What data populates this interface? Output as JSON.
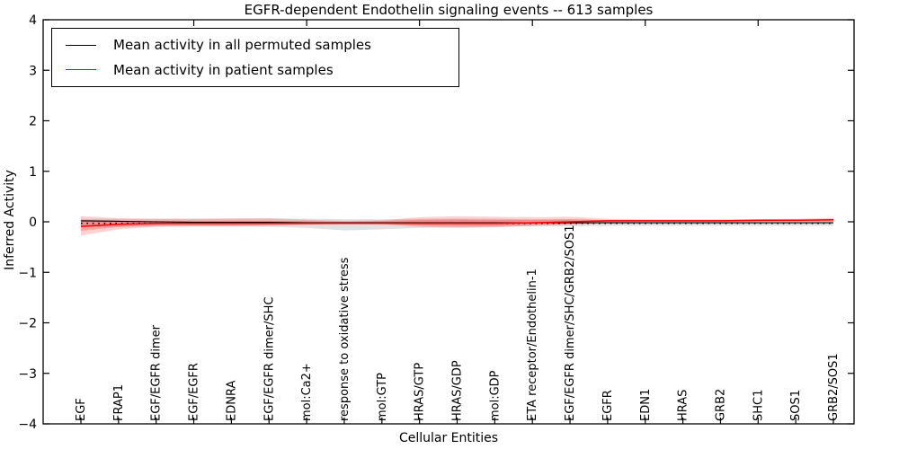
{
  "chart_data": {
    "type": "line",
    "title": "EGFR-dependent Endothelin signaling events -- 613 samples",
    "xlabel": "Cellular Entities",
    "ylabel": "Inferred Activity",
    "ylim": [
      -4,
      4
    ],
    "yticks": [
      4,
      3,
      2,
      1,
      0,
      -1,
      -2,
      -3,
      -4
    ],
    "grid": false,
    "legend_position": "upper left",
    "categories": [
      "EGF",
      "FRAP1",
      "EGF/EGFR dimer",
      "EGF/EGFR",
      "EDNRA",
      "EGF/EGFR dimer/SHC",
      "mol:Ca2+",
      "response to oxidative stress",
      "mol:GTP",
      "HRAS/GTP",
      "HRAS/GDP",
      "mol:GDP",
      "ETA receptor/Endothelin-1",
      "EGF/EGFR dimer/SHC/GRB2/SOS1",
      "EGFR",
      "EDN1",
      "HRAS",
      "GRB2",
      "SHC1",
      "SOS1",
      "GRB2/SOS1"
    ],
    "series": [
      {
        "name": "Mean activity in all permuted samples",
        "color": "#000000",
        "line_style": "solid",
        "values": [
          0.02,
          0.01,
          0.0,
          -0.01,
          -0.01,
          -0.01,
          -0.02,
          -0.02,
          -0.02,
          -0.02,
          -0.02,
          -0.02,
          -0.02,
          -0.02,
          -0.02,
          -0.02,
          -0.02,
          -0.02,
          -0.02,
          -0.02,
          -0.02
        ],
        "band": {
          "fill": "#bdbdbd",
          "opacity": 0.45,
          "upper": [
            0.06,
            0.06,
            0.06,
            0.06,
            0.06,
            0.07,
            0.06,
            0.05,
            0.05,
            0.06,
            0.06,
            0.06,
            0.05,
            0.05,
            0.04,
            0.04,
            0.04,
            0.04,
            0.04,
            0.04,
            0.05
          ],
          "lower": [
            -0.1,
            -0.1,
            -0.09,
            -0.09,
            -0.09,
            -0.1,
            -0.12,
            -0.17,
            -0.15,
            -0.12,
            -0.11,
            -0.1,
            -0.09,
            -0.09,
            -0.08,
            -0.08,
            -0.08,
            -0.08,
            -0.08,
            -0.08,
            -0.08
          ]
        }
      },
      {
        "name": "Mean activity in patient samples",
        "color": "#ff0000",
        "line_style": "solid",
        "values": [
          -0.09,
          -0.05,
          -0.03,
          -0.03,
          -0.03,
          -0.03,
          -0.03,
          -0.03,
          -0.03,
          -0.03,
          -0.03,
          -0.03,
          -0.02,
          0.0,
          0.02,
          0.02,
          0.02,
          0.02,
          0.03,
          0.03,
          0.04
        ],
        "band": {
          "fill": "#ff0000",
          "opacity": 0.18,
          "upper": [
            0.11,
            0.07,
            0.06,
            0.06,
            0.07,
            0.07,
            0.04,
            0.02,
            0.03,
            0.09,
            0.11,
            0.1,
            0.09,
            0.1,
            0.06,
            0.05,
            0.05,
            0.05,
            0.05,
            0.06,
            0.08
          ],
          "lower": [
            -0.27,
            -0.15,
            -0.1,
            -0.09,
            -0.09,
            -0.08,
            -0.06,
            -0.04,
            -0.05,
            -0.1,
            -0.12,
            -0.11,
            -0.08,
            -0.06,
            -0.02,
            -0.01,
            -0.01,
            -0.01,
            0.0,
            0.0,
            0.0
          ]
        },
        "band_inner": {
          "fill": "#ff0000",
          "opacity": 0.22,
          "upper": [
            0.04,
            0.02,
            0.02,
            0.02,
            0.02,
            0.02,
            0.01,
            0.0,
            0.01,
            0.04,
            0.05,
            0.04,
            0.04,
            0.05,
            0.03,
            0.02,
            0.02,
            0.02,
            0.03,
            0.03,
            0.05
          ],
          "lower": [
            -0.18,
            -0.1,
            -0.07,
            -0.07,
            -0.07,
            -0.06,
            -0.05,
            -0.04,
            -0.04,
            -0.07,
            -0.08,
            -0.08,
            -0.06,
            -0.04,
            -0.01,
            0.0,
            0.0,
            0.0,
            0.0,
            0.01,
            0.01
          ]
        }
      }
    ],
    "baseline": {
      "y": -0.03,
      "style": "dotted",
      "color": "#000000"
    },
    "top_ticks_at_category_indices": [
      3,
      6,
      9,
      12,
      15,
      18
    ]
  }
}
